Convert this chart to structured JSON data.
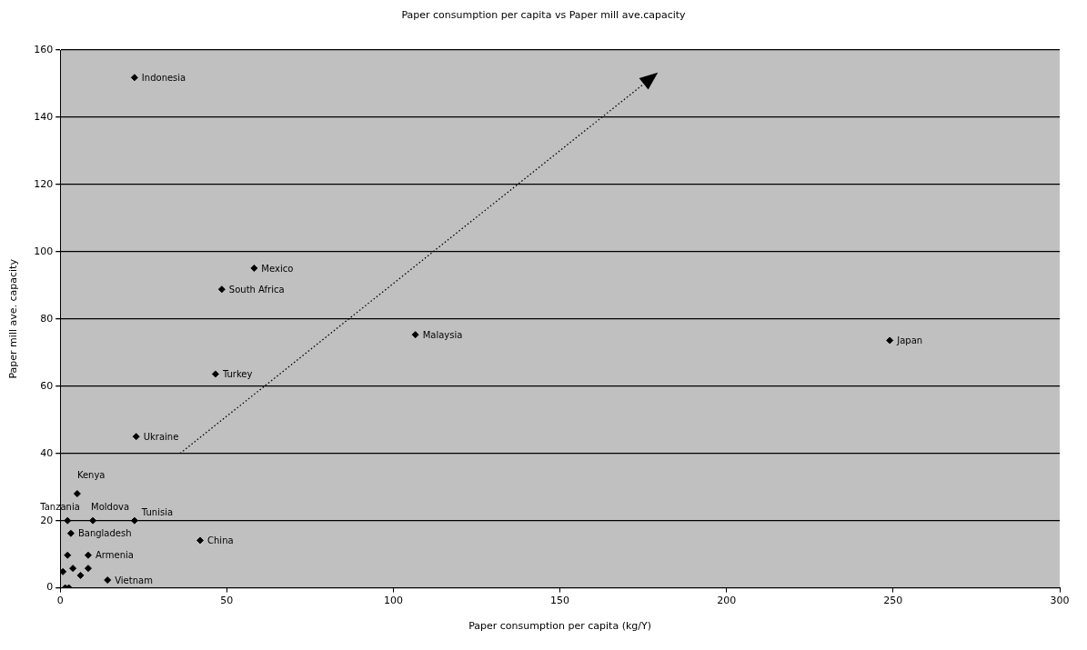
{
  "chart_data": {
    "type": "scatter",
    "title": "Paper consumption per capita vs Paper mill ave.capacity",
    "xlabel": "Paper consumption per capita (kg/Y)",
    "ylabel": "Paper mill ave. capacity",
    "x": [
      22.3,
      58.2,
      48.5,
      106.6,
      249,
      46.6,
      22.8,
      5.1,
      2.2,
      9.8,
      22.3,
      3.2,
      42,
      8.4,
      14.2,
      2.2,
      0.8,
      3.8,
      6.1,
      8.4,
      1.5,
      2.6
    ],
    "series": [
      {
        "color": "#000000",
        "values": [
          151.8,
          95.1,
          88.8,
          75.3,
          73.6,
          63.6,
          45,
          28,
          20,
          20,
          20,
          16.2,
          14.1,
          9.7,
          2.3,
          9.7,
          4.8,
          5.8,
          3.7,
          5.8,
          0,
          0
        ]
      }
    ],
    "annotations": [
      {
        "text": "Indonesia",
        "x": 22.3,
        "y": 151.8
      },
      {
        "text": "Mexico",
        "x": 58.2,
        "y": 95.1
      },
      {
        "text": "South Africa",
        "x": 48.5,
        "y": 88.8
      },
      {
        "text": "Malaysia",
        "x": 106.6,
        "y": 75.3
      },
      {
        "text": "Japan",
        "x": 249,
        "y": 73.6
      },
      {
        "text": "Turkey",
        "x": 46.6,
        "y": 63.6
      },
      {
        "text": "Ukraine",
        "x": 22.8,
        "y": 45
      },
      {
        "text": "Kenya",
        "x": 5.1,
        "y": 28
      },
      {
        "text": "Tanzania",
        "x": 2.2,
        "y": 20
      },
      {
        "text": "Moldova",
        "x": 9.8,
        "y": 20
      },
      {
        "text": "Tunisia",
        "x": 22.3,
        "y": 20
      },
      {
        "text": "Bangladesh",
        "x": 3.2,
        "y": 16.2
      },
      {
        "text": "China",
        "x": 42,
        "y": 14.1
      },
      {
        "text": "Armenia",
        "x": 8.4,
        "y": 9.7
      },
      {
        "text": "Vietnam",
        "x": 14.2,
        "y": 2.3
      }
    ],
    "xlim": [
      0,
      300
    ],
    "xticks": [
      0,
      50,
      100,
      150,
      200,
      250,
      300
    ],
    "ylim": [
      0,
      160
    ],
    "yticks": [
      0,
      20,
      40,
      60,
      80,
      100,
      120,
      140,
      160
    ],
    "grid": "y",
    "legend": false,
    "marker": "diamond"
  }
}
